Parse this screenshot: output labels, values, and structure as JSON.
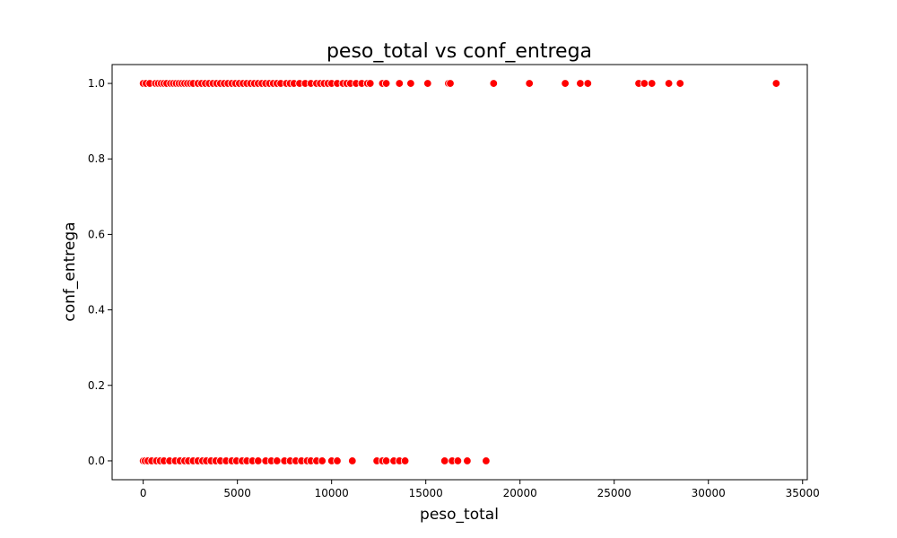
{
  "chart_data": {
    "type": "scatter",
    "title": "peso_total vs conf_entrega",
    "xlabel": "peso_total",
    "ylabel": "conf_entrega",
    "xlim": [
      -1650,
      35250
    ],
    "ylim": [
      -0.05,
      1.05
    ],
    "x_ticks": [
      0,
      5000,
      10000,
      15000,
      20000,
      25000,
      30000,
      35000
    ],
    "y_ticks": [
      0.0,
      0.2,
      0.4,
      0.6,
      0.8,
      1.0
    ],
    "x_tick_labels": [
      "0",
      "5000",
      "10000",
      "15000",
      "20000",
      "25000",
      "30000",
      "35000"
    ],
    "y_tick_labels": [
      "0.0",
      "0.2",
      "0.4",
      "0.6",
      "0.8",
      "1.0"
    ],
    "grid": false,
    "marker_color": "#ff0000",
    "marker_edge": "#ffffff",
    "series": [
      {
        "points": [
          [
            0,
            1
          ],
          [
            150,
            1
          ],
          [
            350,
            1
          ],
          [
            650,
            1
          ],
          [
            800,
            1
          ],
          [
            950,
            1
          ],
          [
            1100,
            1
          ],
          [
            1250,
            1
          ],
          [
            1450,
            1
          ],
          [
            1600,
            1
          ],
          [
            1750,
            1
          ],
          [
            1900,
            1
          ],
          [
            2050,
            1
          ],
          [
            2200,
            1
          ],
          [
            2350,
            1
          ],
          [
            2500,
            1
          ],
          [
            2650,
            1
          ],
          [
            2900,
            1
          ],
          [
            3100,
            1
          ],
          [
            3300,
            1
          ],
          [
            3500,
            1
          ],
          [
            3700,
            1
          ],
          [
            3900,
            1
          ],
          [
            4100,
            1
          ],
          [
            4300,
            1
          ],
          [
            4500,
            1
          ],
          [
            4700,
            1
          ],
          [
            4900,
            1
          ],
          [
            5100,
            1
          ],
          [
            5300,
            1
          ],
          [
            5500,
            1
          ],
          [
            5700,
            1
          ],
          [
            5900,
            1
          ],
          [
            6100,
            1
          ],
          [
            6300,
            1
          ],
          [
            6500,
            1
          ],
          [
            6700,
            1
          ],
          [
            6900,
            1
          ],
          [
            7100,
            1
          ],
          [
            7300,
            1
          ],
          [
            7600,
            1
          ],
          [
            7800,
            1
          ],
          [
            8000,
            1
          ],
          [
            8300,
            1
          ],
          [
            8600,
            1
          ],
          [
            8900,
            1
          ],
          [
            9200,
            1
          ],
          [
            9400,
            1
          ],
          [
            9600,
            1
          ],
          [
            9800,
            1
          ],
          [
            10000,
            1
          ],
          [
            10300,
            1
          ],
          [
            10600,
            1
          ],
          [
            10800,
            1
          ],
          [
            11000,
            1
          ],
          [
            11300,
            1
          ],
          [
            11600,
            1
          ],
          [
            11900,
            1
          ],
          [
            12050,
            1
          ],
          [
            12700,
            1
          ],
          [
            12900,
            1
          ],
          [
            13600,
            1
          ],
          [
            14200,
            1
          ],
          [
            15100,
            1
          ],
          [
            16200,
            1
          ],
          [
            16300,
            1
          ],
          [
            18600,
            1
          ],
          [
            20500,
            1
          ],
          [
            22400,
            1
          ],
          [
            23200,
            1
          ],
          [
            23600,
            1
          ],
          [
            26300,
            1
          ],
          [
            26600,
            1
          ],
          [
            27000,
            1
          ],
          [
            27900,
            1
          ],
          [
            28500,
            1
          ],
          [
            33600,
            1
          ],
          [
            0,
            0
          ],
          [
            100,
            0
          ],
          [
            250,
            0
          ],
          [
            450,
            0
          ],
          [
            700,
            0
          ],
          [
            900,
            0
          ],
          [
            1100,
            0
          ],
          [
            1400,
            0
          ],
          [
            1700,
            0
          ],
          [
            1950,
            0
          ],
          [
            2200,
            0
          ],
          [
            2400,
            0
          ],
          [
            2650,
            0
          ],
          [
            2900,
            0
          ],
          [
            3150,
            0
          ],
          [
            3350,
            0
          ],
          [
            3600,
            0
          ],
          [
            3850,
            0
          ],
          [
            4100,
            0
          ],
          [
            4400,
            0
          ],
          [
            4700,
            0
          ],
          [
            4950,
            0
          ],
          [
            5250,
            0
          ],
          [
            5500,
            0
          ],
          [
            5800,
            0
          ],
          [
            6100,
            0
          ],
          [
            6500,
            0
          ],
          [
            6800,
            0
          ],
          [
            7100,
            0
          ],
          [
            7500,
            0
          ],
          [
            7800,
            0
          ],
          [
            8100,
            0
          ],
          [
            8400,
            0
          ],
          [
            8700,
            0
          ],
          [
            8900,
            0
          ],
          [
            9200,
            0
          ],
          [
            9500,
            0
          ],
          [
            10000,
            0
          ],
          [
            10300,
            0
          ],
          [
            11100,
            0
          ],
          [
            12400,
            0
          ],
          [
            12700,
            0
          ],
          [
            12900,
            0
          ],
          [
            13300,
            0
          ],
          [
            13600,
            0
          ],
          [
            13900,
            0
          ],
          [
            16000,
            0
          ],
          [
            16400,
            0
          ],
          [
            16700,
            0
          ],
          [
            17200,
            0
          ],
          [
            18200,
            0
          ]
        ]
      }
    ]
  }
}
